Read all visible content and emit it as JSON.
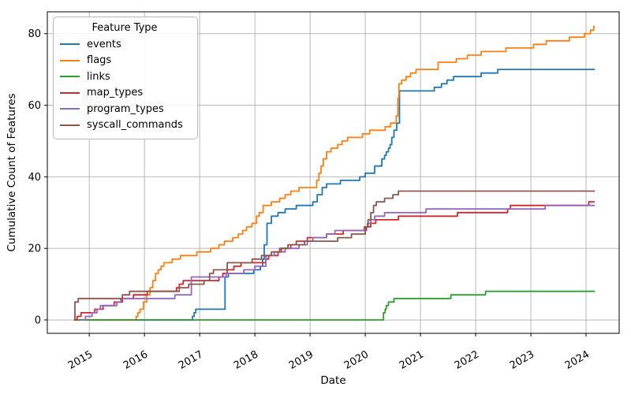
{
  "chart_data": {
    "type": "line",
    "step_interpolation": "step-after",
    "title": "",
    "xlabel": "Date",
    "ylabel": "Cumulative Count of Features",
    "legend_title": "Feature Type",
    "legend_position": "upper left",
    "grid": true,
    "grid_color": "#b0b0b0",
    "spine_color": "#000000",
    "xlim": [
      2014.24,
      2024.6
    ],
    "ylim": [
      -3.74,
      86.1
    ],
    "x_ticks": [
      2015,
      2016,
      2017,
      2018,
      2019,
      2020,
      2021,
      2022,
      2023,
      2024
    ],
    "x_tick_labels": [
      "2015",
      "2016",
      "2017",
      "2018",
      "2019",
      "2020",
      "2021",
      "2022",
      "2023",
      "2024"
    ],
    "y_ticks": [
      0,
      20,
      40,
      60,
      80
    ],
    "y_tick_labels": [
      "0",
      "20",
      "40",
      "60",
      "80"
    ],
    "x_data_end": 2024.16,
    "series": [
      {
        "name": "events",
        "color": "#1f77b4",
        "final_value": 70,
        "points": [
          [
            2014.75,
            0
          ],
          [
            2016.87,
            1
          ],
          [
            2016.9,
            2
          ],
          [
            2016.93,
            3
          ],
          [
            2017.46,
            12
          ],
          [
            2017.52,
            13
          ],
          [
            2017.98,
            14
          ],
          [
            2018.1,
            15
          ],
          [
            2018.14,
            17
          ],
          [
            2018.17,
            21
          ],
          [
            2018.22,
            27
          ],
          [
            2018.3,
            29
          ],
          [
            2018.42,
            30
          ],
          [
            2018.55,
            31
          ],
          [
            2018.75,
            32
          ],
          [
            2019.05,
            33
          ],
          [
            2019.13,
            35
          ],
          [
            2019.22,
            37
          ],
          [
            2019.3,
            38
          ],
          [
            2019.55,
            39
          ],
          [
            2019.9,
            40
          ],
          [
            2020.0,
            41
          ],
          [
            2020.17,
            43
          ],
          [
            2020.3,
            45
          ],
          [
            2020.35,
            46
          ],
          [
            2020.38,
            47
          ],
          [
            2020.42,
            48
          ],
          [
            2020.45,
            49
          ],
          [
            2020.48,
            51
          ],
          [
            2020.52,
            53
          ],
          [
            2020.57,
            55
          ],
          [
            2020.62,
            64
          ],
          [
            2021.25,
            65
          ],
          [
            2021.38,
            66
          ],
          [
            2021.48,
            67
          ],
          [
            2021.6,
            68
          ],
          [
            2022.1,
            69
          ],
          [
            2022.4,
            70
          ]
        ]
      },
      {
        "name": "flags",
        "color": "#ff7f0e",
        "final_value": 82,
        "points": [
          [
            2014.75,
            0
          ],
          [
            2015.85,
            1
          ],
          [
            2015.88,
            2
          ],
          [
            2015.92,
            3
          ],
          [
            2015.98,
            5
          ],
          [
            2016.04,
            7
          ],
          [
            2016.1,
            9
          ],
          [
            2016.15,
            11
          ],
          [
            2016.2,
            13
          ],
          [
            2016.25,
            14
          ],
          [
            2016.3,
            15
          ],
          [
            2016.35,
            16
          ],
          [
            2016.5,
            17
          ],
          [
            2016.65,
            18
          ],
          [
            2016.95,
            19
          ],
          [
            2017.2,
            20
          ],
          [
            2017.35,
            21
          ],
          [
            2017.45,
            22
          ],
          [
            2017.6,
            23
          ],
          [
            2017.7,
            24
          ],
          [
            2017.78,
            25
          ],
          [
            2017.85,
            26
          ],
          [
            2017.95,
            27
          ],
          [
            2018.03,
            29
          ],
          [
            2018.08,
            30
          ],
          [
            2018.15,
            32
          ],
          [
            2018.3,
            33
          ],
          [
            2018.45,
            34
          ],
          [
            2018.55,
            35
          ],
          [
            2018.65,
            36
          ],
          [
            2018.8,
            37
          ],
          [
            2019.12,
            39
          ],
          [
            2019.16,
            41
          ],
          [
            2019.2,
            43
          ],
          [
            2019.24,
            45
          ],
          [
            2019.3,
            47
          ],
          [
            2019.38,
            48
          ],
          [
            2019.5,
            49
          ],
          [
            2019.58,
            50
          ],
          [
            2019.68,
            51
          ],
          [
            2019.95,
            52
          ],
          [
            2020.08,
            53
          ],
          [
            2020.36,
            54
          ],
          [
            2020.46,
            55
          ],
          [
            2020.56,
            57
          ],
          [
            2020.59,
            62
          ],
          [
            2020.61,
            66
          ],
          [
            2020.66,
            67
          ],
          [
            2020.74,
            68
          ],
          [
            2020.82,
            69
          ],
          [
            2020.92,
            70
          ],
          [
            2021.32,
            72
          ],
          [
            2021.65,
            73
          ],
          [
            2021.85,
            74
          ],
          [
            2022.1,
            75
          ],
          [
            2022.55,
            76
          ],
          [
            2023.05,
            77
          ],
          [
            2023.28,
            78
          ],
          [
            2023.7,
            79
          ],
          [
            2023.97,
            80
          ],
          [
            2024.08,
            81
          ],
          [
            2024.14,
            82
          ]
        ]
      },
      {
        "name": "links",
        "color": "#2ca02c",
        "final_value": 8,
        "points": [
          [
            2014.72,
            0
          ],
          [
            2020.33,
            2
          ],
          [
            2020.36,
            3
          ],
          [
            2020.38,
            4
          ],
          [
            2020.42,
            5
          ],
          [
            2020.52,
            6
          ],
          [
            2021.55,
            7
          ],
          [
            2022.18,
            8
          ]
        ]
      },
      {
        "name": "map_types",
        "color": "#d62728",
        "final_value": 33,
        "points": [
          [
            2014.75,
            0
          ],
          [
            2014.78,
            1
          ],
          [
            2014.85,
            2
          ],
          [
            2015.1,
            3
          ],
          [
            2015.25,
            4
          ],
          [
            2015.45,
            5
          ],
          [
            2015.6,
            6
          ],
          [
            2015.8,
            7
          ],
          [
            2016.05,
            8
          ],
          [
            2016.58,
            9
          ],
          [
            2016.63,
            10
          ],
          [
            2016.7,
            11
          ],
          [
            2017.35,
            12
          ],
          [
            2017.42,
            13
          ],
          [
            2017.5,
            14
          ],
          [
            2017.62,
            15
          ],
          [
            2017.75,
            16
          ],
          [
            2018.2,
            17
          ],
          [
            2018.25,
            18
          ],
          [
            2018.42,
            19
          ],
          [
            2018.48,
            20
          ],
          [
            2018.65,
            21
          ],
          [
            2018.75,
            22
          ],
          [
            2018.95,
            23
          ],
          [
            2019.3,
            24
          ],
          [
            2019.6,
            25
          ],
          [
            2020.02,
            26
          ],
          [
            2020.1,
            27
          ],
          [
            2020.19,
            28
          ],
          [
            2020.6,
            29
          ],
          [
            2021.67,
            30
          ],
          [
            2022.58,
            31
          ],
          [
            2022.63,
            32
          ],
          [
            2024.05,
            33
          ]
        ]
      },
      {
        "name": "program_types",
        "color": "#9467bd",
        "final_value": 32,
        "points": [
          [
            2014.85,
            0
          ],
          [
            2014.93,
            1
          ],
          [
            2015.05,
            2
          ],
          [
            2015.14,
            3
          ],
          [
            2015.2,
            4
          ],
          [
            2015.5,
            5
          ],
          [
            2015.57,
            6
          ],
          [
            2016.55,
            7
          ],
          [
            2016.85,
            12
          ],
          [
            2017.48,
            13
          ],
          [
            2017.8,
            14
          ],
          [
            2018.0,
            15
          ],
          [
            2018.2,
            18
          ],
          [
            2018.35,
            19
          ],
          [
            2018.55,
            20
          ],
          [
            2018.8,
            21
          ],
          [
            2018.95,
            22
          ],
          [
            2019.05,
            23
          ],
          [
            2019.3,
            24
          ],
          [
            2019.45,
            25
          ],
          [
            2019.98,
            26
          ],
          [
            2020.04,
            27
          ],
          [
            2020.1,
            28
          ],
          [
            2020.17,
            29
          ],
          [
            2020.35,
            30
          ],
          [
            2021.1,
            31
          ],
          [
            2023.26,
            32
          ]
        ]
      },
      {
        "name": "syscall_commands",
        "color": "#8c564b",
        "final_value": 36,
        "points": [
          [
            2014.72,
            0
          ],
          [
            2014.74,
            5
          ],
          [
            2014.8,
            6
          ],
          [
            2015.6,
            7
          ],
          [
            2015.73,
            8
          ],
          [
            2016.63,
            9
          ],
          [
            2016.8,
            10
          ],
          [
            2017.08,
            11
          ],
          [
            2017.18,
            13
          ],
          [
            2017.25,
            14
          ],
          [
            2017.5,
            16
          ],
          [
            2017.95,
            17
          ],
          [
            2018.12,
            18
          ],
          [
            2018.3,
            19
          ],
          [
            2018.45,
            20
          ],
          [
            2018.6,
            21
          ],
          [
            2018.9,
            22
          ],
          [
            2019.5,
            23
          ],
          [
            2019.75,
            24
          ],
          [
            2020.0,
            26
          ],
          [
            2020.05,
            28
          ],
          [
            2020.1,
            30
          ],
          [
            2020.15,
            32
          ],
          [
            2020.2,
            33
          ],
          [
            2020.35,
            34
          ],
          [
            2020.5,
            35
          ],
          [
            2020.6,
            36
          ]
        ]
      }
    ]
  }
}
